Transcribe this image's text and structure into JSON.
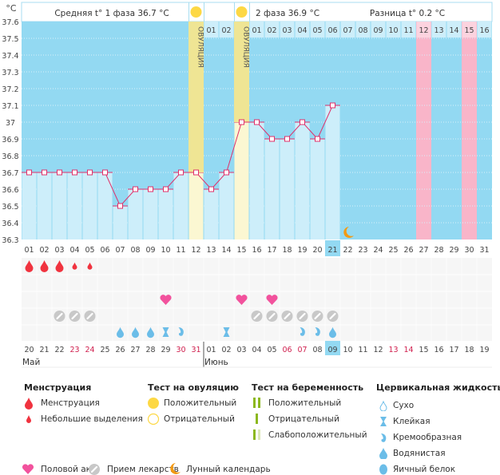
{
  "chart_data": {
    "type": "line",
    "yunit": "°C",
    "ylim": [
      36.3,
      37.6
    ],
    "yticks": [
      "37.6",
      "37.5",
      "37.4",
      "37.3",
      "37.2",
      "37.1",
      "37",
      "36.9",
      "36.8",
      "36.7",
      "36.6",
      "36.5",
      "36.4",
      "36.3"
    ],
    "cycle_days": [
      "01",
      "02",
      "03",
      "04",
      "05",
      "06",
      "07",
      "08",
      "09",
      "10",
      "11",
      "12",
      "13",
      "14",
      "15",
      "16",
      "17",
      "18",
      "19",
      "20",
      "21",
      "22",
      "23",
      "24",
      "25",
      "26",
      "27",
      "28",
      "29",
      "30",
      "31"
    ],
    "temperatures": [
      36.7,
      36.7,
      36.7,
      36.7,
      36.7,
      36.7,
      36.5,
      36.6,
      36.6,
      36.6,
      36.7,
      36.7,
      36.6,
      36.7,
      37.0,
      37.0,
      36.9,
      36.9,
      37.0,
      36.9,
      37.1
    ],
    "current_day": 21,
    "ovulation_days": [
      12,
      15
    ],
    "ovulation_label": "ОВУЛЯЦИЯ",
    "ovulation_test_positive_days": [
      12,
      15
    ],
    "highlight_pink_days": [
      27,
      30
    ],
    "post_ovulation_numbers": [
      {
        "day": 13,
        "label": "01"
      },
      {
        "day": 14,
        "label": "02"
      },
      {
        "day": 16,
        "label": "01"
      },
      {
        "day": 17,
        "label": "02"
      },
      {
        "day": 18,
        "label": "03"
      },
      {
        "day": 19,
        "label": "04"
      },
      {
        "day": 20,
        "label": "05"
      },
      {
        "day": 21,
        "label": "06"
      },
      {
        "day": 22,
        "label": "07"
      },
      {
        "day": 23,
        "label": "08"
      },
      {
        "day": 24,
        "label": "09"
      },
      {
        "day": 25,
        "label": "10"
      },
      {
        "day": 26,
        "label": "11"
      },
      {
        "day": 27,
        "label": "12"
      },
      {
        "day": 28,
        "label": "13"
      },
      {
        "day": 29,
        "label": "14"
      },
      {
        "day": 30,
        "label": "15"
      },
      {
        "day": 31,
        "label": "16"
      }
    ],
    "moon_day": 22,
    "menstruation": {
      "1": "heavy",
      "2": "heavy",
      "3": "heavy",
      "4": "light",
      "5": "light"
    },
    "intercourse_days": [
      10,
      15,
      17
    ],
    "medication_days": [
      3,
      4,
      5,
      16,
      17,
      18,
      19,
      20,
      21
    ],
    "cervical_fluid": {
      "7": "watery",
      "8": "watery",
      "9": "watery",
      "10": "sticky",
      "11": "creamy",
      "14": "sticky",
      "19": "creamy",
      "20": "creamy",
      "21": "watery"
    },
    "dates": [
      "20",
      "21",
      "22",
      "23",
      "24",
      "25",
      "26",
      "27",
      "28",
      "29",
      "30",
      "31",
      "01",
      "02",
      "03",
      "04",
      "05",
      "06",
      "07",
      "08",
      "09",
      "10",
      "11",
      "12",
      "13",
      "14",
      "15",
      "16",
      "17",
      "18",
      "19"
    ],
    "weekend_dates_index": [
      3,
      4,
      10,
      11,
      17,
      18,
      24,
      25
    ],
    "months": [
      {
        "label": "Май",
        "start": 0
      },
      {
        "label": "Июнь",
        "start": 12
      }
    ]
  },
  "header": {
    "phase1": "Средняя t° 1 фаза 36.7 °C",
    "phase2": "2 фаза 36.9 °C",
    "diff": "Разница t° 0.2 °C"
  },
  "legend": {
    "menstruation": {
      "title": "Менструация",
      "items": [
        "Менструация",
        "Небольшие выделения"
      ]
    },
    "ovulation_test": {
      "title": "Тест на овуляцию",
      "items": [
        "Положительный",
        "Отрицательный"
      ]
    },
    "pregnancy_test": {
      "title": "Тест на беременность",
      "items": [
        "Положительный",
        "Отрицательный",
        "Слабоположительный"
      ]
    },
    "cervical": {
      "title": "Цервикальная жидкость",
      "items": [
        "Сухо",
        "Клейкая",
        "Кремообразная",
        "Водянистая",
        "Яичный белок"
      ]
    },
    "other": [
      "Половой акт",
      "Прием лекарств",
      "Лунный календарь"
    ]
  },
  "colors": {
    "plot": "#93d9f2",
    "bar": "#cdeefa",
    "line": "#e0306a",
    "ovulation": "#f9f3c2",
    "pink": "#f9b5c9",
    "menstruation": "#f0333f",
    "heart": "#f2529d",
    "pill": "#c8c8c8",
    "fluid": "#6bbde8",
    "moon": "#f39a12",
    "sun": "#fdd844"
  }
}
